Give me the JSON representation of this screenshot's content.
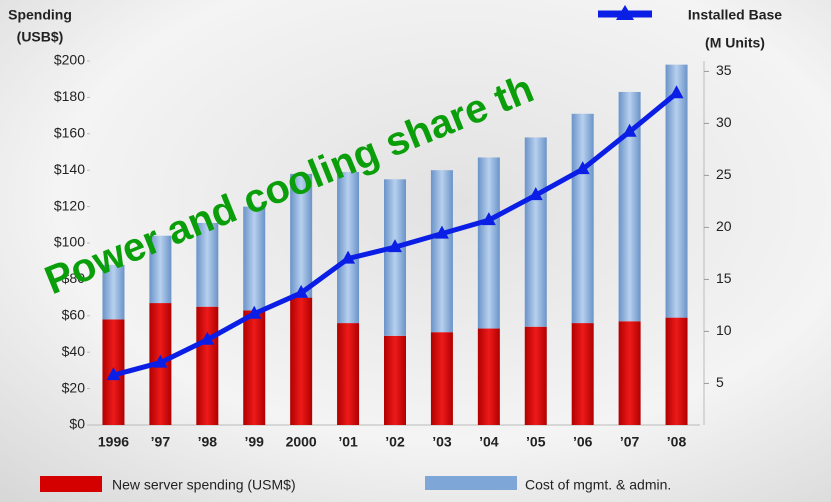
{
  "chart_data": {
    "type": "bar",
    "y_label": "Spending",
    "y_unit": "(USB$)",
    "y2_unit": "(M Units)",
    "annotation": "Power and cooling share th",
    "categories": [
      "1996",
      "’97",
      "’98",
      "’99",
      "2000",
      "’01",
      "’02",
      "’03",
      "’04",
      "’05",
      "’06",
      "’07",
      "’08"
    ],
    "series": [
      {
        "name": "New server spending (USM$)",
        "color": "#d40000",
        "values": [
          58,
          67,
          65,
          63,
          70,
          56,
          49,
          51,
          53,
          54,
          56,
          57,
          59
        ]
      },
      {
        "name": "Cost of mgmt. & admin.",
        "color": "#7ea6d6",
        "values": [
          30,
          37,
          46,
          57,
          68,
          83,
          86,
          89,
          94,
          104,
          115,
          126,
          139
        ]
      },
      {
        "name": "Installed Base",
        "color": "#0a1ee6",
        "axis": "y2",
        "type": "line",
        "values": [
          5.8,
          7.0,
          9.2,
          11.7,
          13.7,
          17.0,
          18.1,
          19.4,
          20.7,
          23.1,
          25.6,
          29.2,
          32.9
        ]
      }
    ],
    "ylim": [
      0,
      200
    ],
    "yticks": [
      {
        "value": 0,
        "label": "$0"
      },
      {
        "value": 20,
        "label": "$20"
      },
      {
        "value": 40,
        "label": "$40"
      },
      {
        "value": 60,
        "label": "$60"
      },
      {
        "value": 80,
        "label": "$80"
      },
      {
        "value": 100,
        "label": "$100"
      },
      {
        "value": 120,
        "label": "$120"
      },
      {
        "value": 140,
        "label": "$140"
      },
      {
        "value": 160,
        "label": "$160"
      },
      {
        "value": 180,
        "label": "$180"
      },
      {
        "value": 200,
        "label": "$200"
      }
    ],
    "y2lim": [
      1,
      36
    ],
    "y2ticks": [
      5,
      10,
      15,
      20,
      25,
      30,
      35
    ]
  }
}
